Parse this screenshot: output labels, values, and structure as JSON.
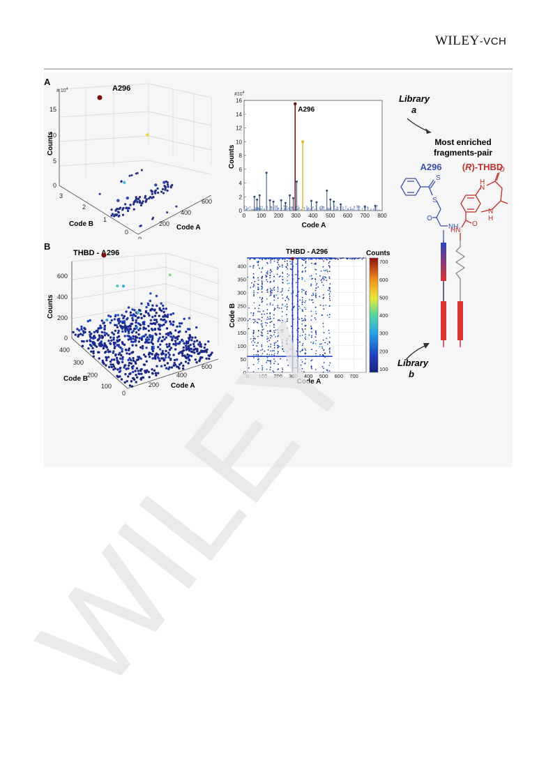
{
  "header": {
    "publisher_main": "WILEY",
    "publisher_suffix": "-VCH"
  },
  "watermark": {
    "text": "WILEY"
  },
  "panel_a": {
    "letter": "A",
    "scatter3d": {
      "title": "A296",
      "multiplier": "# 10",
      "multiplier_exp": "4",
      "zlabel": "Counts",
      "xlabel": "Code A",
      "ylabel": "Code B",
      "zticks": [
        "0",
        "5",
        "10",
        "15"
      ],
      "xticks": [
        "0",
        "200",
        "400",
        "600"
      ],
      "yticks": [
        "0",
        "1",
        "2",
        "3"
      ]
    },
    "bar": {
      "label": "A296",
      "multiplier": "#10",
      "multiplier_exp": "4",
      "ylabel": "Counts",
      "xlabel": "Code A",
      "xticks": [
        "0",
        "100",
        "200",
        "300",
        "400",
        "500",
        "600",
        "700",
        "800"
      ],
      "yticks": [
        "0",
        "2",
        "4",
        "6",
        "8",
        "10",
        "12",
        "14",
        "16"
      ]
    }
  },
  "panel_b": {
    "letter": "B",
    "scatter3d": {
      "title": "THBD - A296",
      "zlabel": "Counts",
      "xlabel": "Code A",
      "ylabel": "Code B",
      "zticks": [
        "0",
        "200",
        "400",
        "600"
      ],
      "xticks": [
        "0",
        "200",
        "400",
        "600"
      ],
      "yticks": [
        "100",
        "200",
        "300",
        "400"
      ]
    },
    "heatmap": {
      "title": "THBD - A296",
      "xlabel": "Code A",
      "ylabel": "Code B",
      "colorbar_label": "Counts",
      "xticks": [
        "0",
        "100",
        "200",
        "300",
        "400",
        "500",
        "600",
        "700"
      ],
      "yticks": [
        "0",
        "50",
        "100",
        "150",
        "200",
        "250",
        "300",
        "350",
        "400"
      ],
      "cbticks": [
        "100",
        "200",
        "300",
        "400",
        "500",
        "600",
        "700"
      ]
    }
  },
  "scheme": {
    "library_a_word": "Library",
    "library_a_letter": "a",
    "enriched_line1": "Most enriched",
    "enriched_line2": "fragments-pair",
    "fragment_left": "A296",
    "fragment_right_prefix": "(",
    "fragment_right_r": "R",
    "fragment_right_suffix": ")-THBD",
    "library_b_word": "Library",
    "library_b_letter": "b",
    "atom_s1": "S",
    "atom_s2": "S",
    "atom_o1": "O",
    "atom_o2": "O",
    "atom_o3": "O",
    "atom_nh1": "NH",
    "atom_nh2": "HN",
    "atom_h_top": "H",
    "atom_n_top": "N",
    "atom_n_bot": "N",
    "atom_h_bot": "H"
  },
  "chart_data": [
    {
      "type": "scatter",
      "title": "A296",
      "xlabel": "Code A",
      "ylabel": "Code B",
      "zlabel": "Counts",
      "xlim": [
        0,
        700
      ],
      "ylim": [
        0,
        3
      ],
      "zlim": [
        0,
        15
      ],
      "z_multiplier": "1e4",
      "highlight": {
        "label": "A296",
        "x": 296,
        "y": 1,
        "z": 15.5
      },
      "points": [
        {
          "x": 340,
          "y": 1,
          "z": 10
        },
        {
          "x": 120,
          "y": 1,
          "z": 4.5
        },
        {
          "x": 60,
          "y": 1,
          "z": 2.2
        },
        {
          "x": 150,
          "y": 1,
          "z": 1.8
        },
        {
          "x": 420,
          "y": 1,
          "z": 1.5
        },
        {
          "x": 500,
          "y": 1,
          "z": 1.2
        }
      ]
    },
    {
      "type": "bar",
      "xlabel": "Code A",
      "ylabel": "Counts",
      "xlim": [
        0,
        800
      ],
      "ylim": [
        0,
        16
      ],
      "y_multiplier": "1e4",
      "highlight": {
        "label": "A296",
        "x": 296,
        "y": 15.5
      },
      "stems": [
        {
          "x": 296,
          "y": 15.5,
          "color": "#6b1414"
        },
        {
          "x": 340,
          "y": 10,
          "color": "#d9c23a"
        },
        {
          "x": 305,
          "y": 4.2,
          "color": "#2f4a7a"
        },
        {
          "x": 130,
          "y": 5.5,
          "color": "#2f4a7a"
        },
        {
          "x": 60,
          "y": 2,
          "color": "#2f4a7a"
        },
        {
          "x": 75,
          "y": 1.6,
          "color": "#2f4a7a"
        },
        {
          "x": 90,
          "y": 2.2,
          "color": "#2f4a7a"
        },
        {
          "x": 150,
          "y": 1.5,
          "color": "#2f4a7a"
        },
        {
          "x": 170,
          "y": 1.3,
          "color": "#2f4a7a"
        },
        {
          "x": 215,
          "y": 1.5,
          "color": "#2f4a7a"
        },
        {
          "x": 240,
          "y": 1.1,
          "color": "#2f4a7a"
        },
        {
          "x": 265,
          "y": 2.2,
          "color": "#2f4a7a"
        },
        {
          "x": 285,
          "y": 1.8,
          "color": "#2f4a7a"
        },
        {
          "x": 390,
          "y": 1.4,
          "color": "#2f4a7a"
        },
        {
          "x": 420,
          "y": 1.2,
          "color": "#2f4a7a"
        },
        {
          "x": 480,
          "y": 2.9,
          "color": "#2f4a7a"
        },
        {
          "x": 500,
          "y": 1.6,
          "color": "#2f4a7a"
        },
        {
          "x": 520,
          "y": 1.3,
          "color": "#2f4a7a"
        },
        {
          "x": 560,
          "y": 0.9,
          "color": "#2f4a7a"
        },
        {
          "x": 700,
          "y": 0.6,
          "color": "#2f4a7a"
        },
        {
          "x": 760,
          "y": 0.7,
          "color": "#2f4a7a"
        }
      ]
    },
    {
      "type": "scatter",
      "title": "THBD - A296",
      "xlabel": "Code A",
      "ylabel": "Code B",
      "zlabel": "Counts",
      "xlim": [
        0,
        700
      ],
      "ylim": [
        0,
        400
      ],
      "zlim": [
        0,
        600
      ],
      "highlight": {
        "label": "THBD - A296",
        "x": 296,
        "y": 200,
        "z": 720
      }
    },
    {
      "type": "heatmap",
      "title": "THBD - A296",
      "xlabel": "Code A",
      "ylabel": "Code B",
      "xlim": [
        0,
        780
      ],
      "ylim": [
        0,
        430
      ],
      "colorbar": {
        "label": "Counts",
        "min": 80,
        "max": 720
      },
      "highlight": {
        "x": 296,
        "y": 430,
        "value": 720
      },
      "dense_columns": [
        296,
        330
      ],
      "dense_rows": [
        430,
        60
      ]
    }
  ]
}
